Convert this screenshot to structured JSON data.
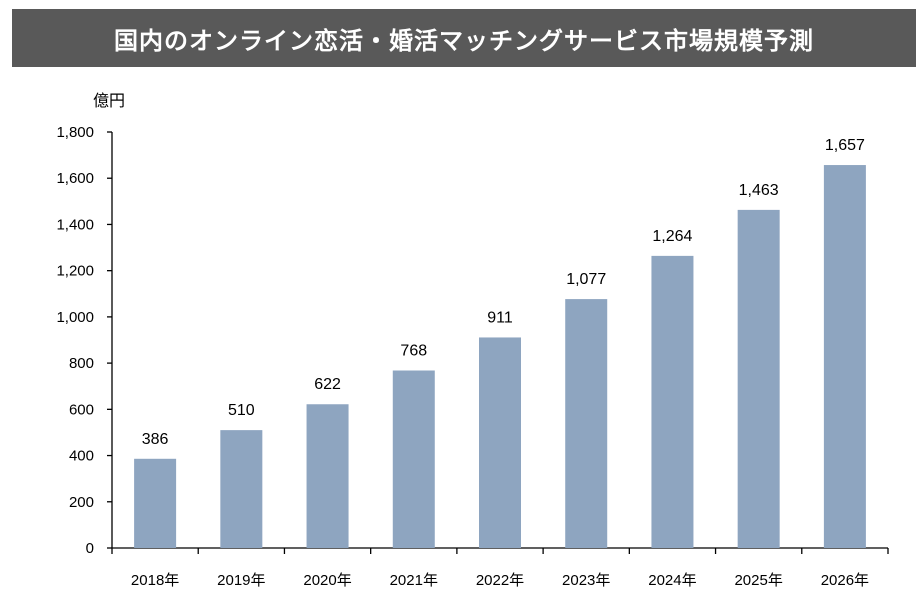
{
  "title": "国内のオンライン恋活・婚活マッチングサービス市場規模予測",
  "colors": {
    "title_bg": "#595959",
    "title_text": "#ffffff",
    "bar": "#8ea5c0",
    "axis": "#000000"
  },
  "chart_data": {
    "type": "bar",
    "title": "国内のオンライン恋活・婚活マッチングサービス市場規模予測",
    "ylabel": "億円",
    "xlabel": "",
    "categories": [
      "2018年",
      "2019年",
      "2020年",
      "2021年",
      "2022年",
      "2023年",
      "2024年",
      "2025年",
      "2026年"
    ],
    "values": [
      386,
      510,
      622,
      768,
      911,
      1077,
      1264,
      1463,
      1657
    ],
    "value_labels": [
      "386",
      "510",
      "622",
      "768",
      "911",
      "1,077",
      "1,264",
      "1,463",
      "1,657"
    ],
    "ylim": [
      0,
      1800
    ],
    "yticks": [
      0,
      200,
      400,
      600,
      800,
      1000,
      1200,
      1400,
      1600,
      1800
    ],
    "ytick_labels": [
      "0",
      "200",
      "400",
      "600",
      "800",
      "1,000",
      "1,200",
      "1,400",
      "1,600",
      "1,800"
    ],
    "grid": false,
    "legend": "none"
  }
}
